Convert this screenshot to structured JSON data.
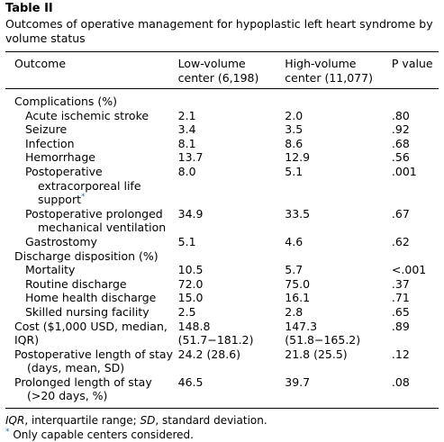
{
  "table_label": "Table II",
  "caption": "Outcomes of operative management for hypoplastic left heart syndrome by volume status",
  "header": {
    "outcome": "Outcome",
    "low": "Low-volume center (6,198)",
    "high": "High-volume center (11,077)",
    "p": "P value"
  },
  "rows": {
    "complications": "Complications (%)",
    "stroke": {
      "label": "Acute ischemic stroke",
      "low": "2.1",
      "high": "2.0",
      "p": ".80"
    },
    "seizure": {
      "label": "Seizure",
      "low": "3.4",
      "high": "3.5",
      "p": ".92"
    },
    "infection": {
      "label": "Infection",
      "low": "8.1",
      "high": "8.6",
      "p": ".68"
    },
    "hemorrhage": {
      "label": "Hemorrhage",
      "low": "13.7",
      "high": "12.9",
      "p": ".56"
    },
    "ecls": {
      "label": "Postoperative extracorporeal life support",
      "star": "*",
      "low": "8.0",
      "high": "5.1",
      "p": ".001"
    },
    "ventilation": {
      "label": "Postoperative prolonged mechanical ventilation",
      "low": "34.9",
      "high": "33.5",
      "p": ".67"
    },
    "gastrostomy": {
      "label": "Gastrostomy",
      "low": "5.1",
      "high": "4.6",
      "p": ".62"
    },
    "discharge": "Discharge disposition (%)",
    "mortality": {
      "label": "Mortality",
      "low": "10.5",
      "high": "5.7",
      "p": "<.001"
    },
    "routine": {
      "label": "Routine discharge",
      "low": "72.0",
      "high": "75.0",
      "p": ".37"
    },
    "home": {
      "label": "Home health discharge",
      "low": "15.0",
      "high": "16.1",
      "p": ".71"
    },
    "snf": {
      "label": "Skilled nursing facility",
      "low": "2.5",
      "high": "2.8",
      "p": ".65"
    },
    "cost": {
      "label": "Cost ($1,000 USD, median, IQR)",
      "low": "148.8 (51.7−181.2)",
      "high": "147.3 (51.8−165.2)",
      "p": ".89"
    },
    "los": {
      "label": "Postoperative length of stay (days, mean, SD)",
      "low": "24.2 (28.6)",
      "high": "21.8 (25.5)",
      "p": ".12"
    },
    "prolonged_los": {
      "label": "Prolonged length of stay (>20 days, %)",
      "low": "46.5",
      "high": "39.7",
      "p": ".08"
    }
  },
  "footnotes": {
    "iqr_abbr": "IQR",
    "iqr_text": ", interquartile range; ",
    "sd_abbr": "SD",
    "sd_text": ", standard deviation.",
    "star": "*",
    "star_text": " Only capable centers considered."
  }
}
